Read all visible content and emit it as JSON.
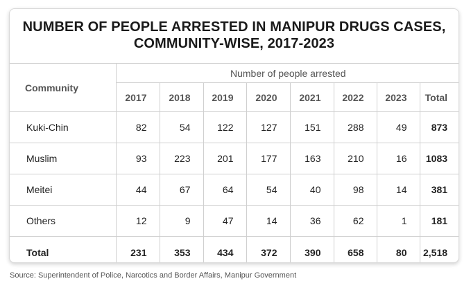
{
  "title_line1": "NUMBER OF PEOPLE ARRESTED IN MANIPUR DRUGS CASES,",
  "title_line2": "COMMUNITY-WISE, 2017-2023",
  "table": {
    "group_header": "Number of people arrested",
    "community_header": "Community",
    "columns": [
      "2017",
      "2018",
      "2019",
      "2020",
      "2021",
      "2022",
      "2023",
      "Total"
    ],
    "rows": [
      {
        "community": "Kuki-Chin",
        "values": [
          "82",
          "54",
          "122",
          "127",
          "151",
          "288",
          "49",
          "873"
        ]
      },
      {
        "community": "Muslim",
        "values": [
          "93",
          "223",
          "201",
          "177",
          "163",
          "210",
          "16",
          "1083"
        ]
      },
      {
        "community": "Meitei",
        "values": [
          "44",
          "67",
          "64",
          "54",
          "40",
          "98",
          "14",
          "381"
        ]
      },
      {
        "community": "Others",
        "values": [
          "12",
          "9",
          "47",
          "14",
          "36",
          "62",
          "1",
          "181"
        ]
      }
    ],
    "total_row": {
      "label": "Total",
      "values": [
        "231",
        "353",
        "434",
        "372",
        "390",
        "658",
        "80",
        "2,518"
      ]
    }
  },
  "source": "Source: Superintendent of Police, Narcotics and Border Affairs, Manipur Government"
}
